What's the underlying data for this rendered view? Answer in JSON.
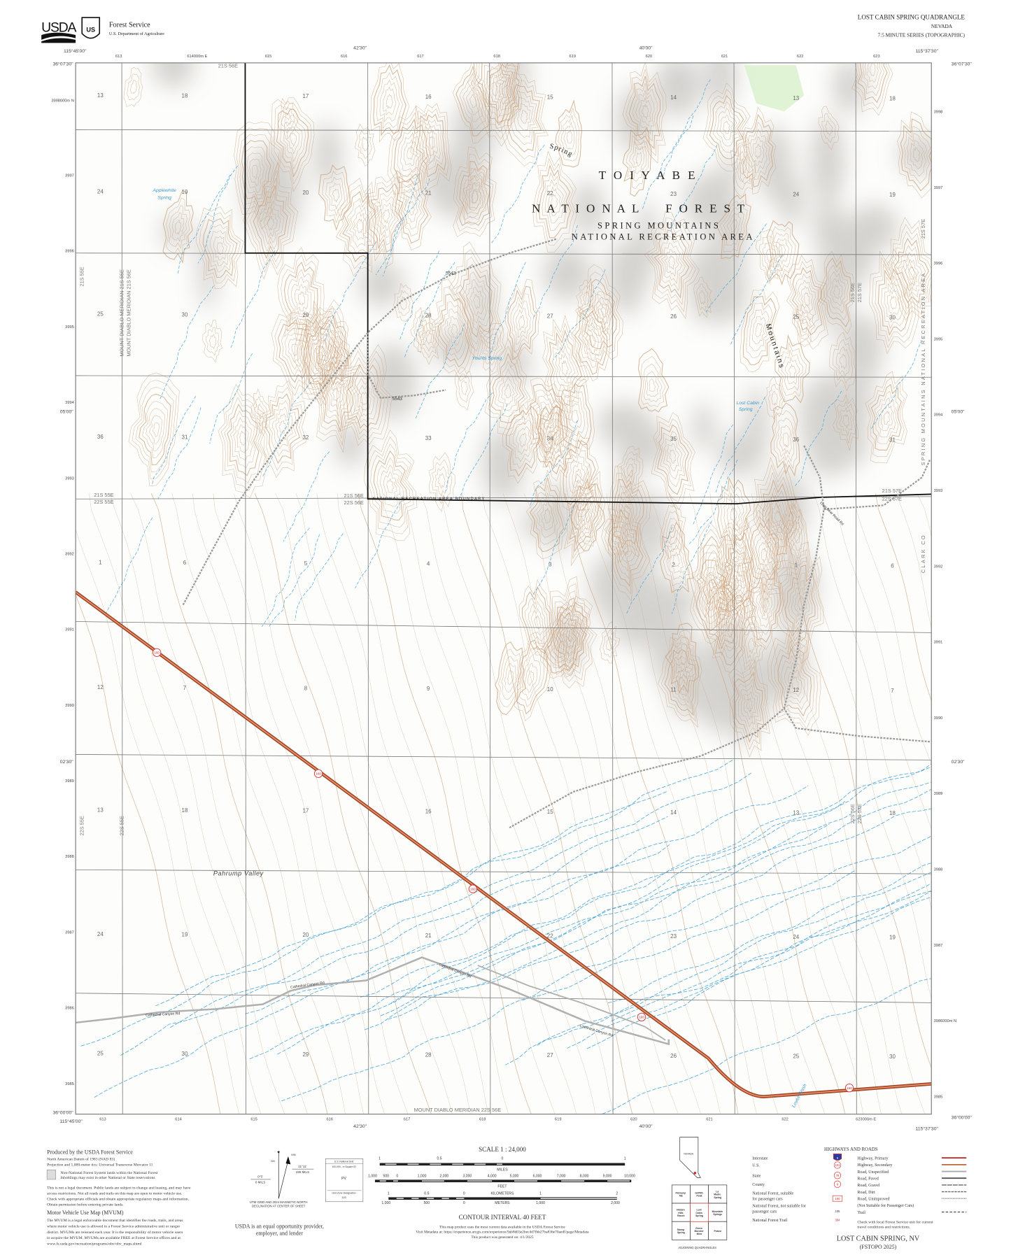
{
  "header": {
    "agency_logo_text": "USDA",
    "agency_name": "Forest Service",
    "department": "U.S. Department of Agriculture",
    "quad_title": "LOST CABIN SPRING QUADRANGLE",
    "state": "NEVADA",
    "series": "7.5 MINUTE SERIES (TOPOGRAPHIC)"
  },
  "frame": {
    "top_longitudes": [
      "115°45'00\"",
      "42'30\"",
      "40'00\"",
      "115°37'30\""
    ],
    "bottom_longitudes": [
      "115°45'00\"",
      "42'30\"",
      "40'00\"",
      "115°37'30\""
    ],
    "left_latitudes": [
      "36°07'30\"",
      "05'00\"",
      "02'30\"",
      "36°00'00\""
    ],
    "right_latitudes": [
      "36°07'30\"",
      "05'00\"",
      "02'30\"",
      "36°00'00\""
    ],
    "top_eastings": [
      "613",
      "614000m E",
      "615",
      "616",
      "617",
      "618",
      "619",
      "620",
      "621",
      "622",
      "623"
    ],
    "bottom_eastings": [
      "613",
      "614",
      "615",
      "616",
      "617",
      "618",
      "619",
      "620",
      "621",
      "622",
      "623000m E"
    ],
    "left_northings": [
      "3998000m N",
      "3997",
      "3996",
      "3995",
      "3994",
      "3993",
      "3992",
      "3991",
      "3990",
      "3989",
      "3988",
      "3987",
      "3986",
      "3985"
    ],
    "right_northings": [
      "3998",
      "3997",
      "3996",
      "3995",
      "3994",
      "3993",
      "3992",
      "3991",
      "3990",
      "3989",
      "3988",
      "3987",
      "3986000m N",
      "3985"
    ]
  },
  "map": {
    "section_numbers": [
      "13",
      "18",
      "17",
      "16",
      "15",
      "14",
      "13",
      "18",
      "24",
      "19",
      "20",
      "21",
      "22",
      "23",
      "24",
      "19",
      "25",
      "30",
      "29",
      "28",
      "27",
      "26",
      "25",
      "30",
      "36",
      "31",
      "32",
      "33",
      "34",
      "35",
      "36",
      "31",
      "1",
      "6",
      "5",
      "4",
      "3",
      "2",
      "1",
      "6",
      "12",
      "7",
      "8",
      "9",
      "10",
      "11",
      "12",
      "7",
      "13",
      "18",
      "17",
      "16",
      "15",
      "14",
      "13",
      "18",
      "24",
      "19",
      "20",
      "21",
      "22",
      "23",
      "24",
      "19",
      "25",
      "30",
      "29",
      "28",
      "27",
      "26",
      "25",
      "30"
    ],
    "forest_name_1": "T O I Y A B E",
    "forest_name_2": "N A T I O N A L     F O R E S T",
    "nra_line_1": "SPRING MOUNTAINS",
    "nra_line_2": "NATIONAL RECREATION AREA",
    "range_word_1": "Spring",
    "range_word_2": "Mountains",
    "valley": "Pahrump Valley",
    "nra_boundary": "NATIONAL RECREATION AREA BOUNDARY",
    "springs": [
      {
        "line1": "Applewhite",
        "line2": "Spring"
      },
      {
        "line1": "Younts Spring"
      },
      {
        "line1": "Lost Cabin",
        "line2": "Spring"
      }
    ],
    "wash": "Lovell Wash",
    "townships": {
      "t21s55e": "21S 55E",
      "t22s55e": "22S 55E",
      "t21s56e": "21S 56E",
      "t22s56e": "22S 56E",
      "t21s57e": "21S 57E",
      "t22s57e": "22S 57E",
      "meridian_21s55e": "MOUNT DIABLO MERIDIAN 21S 55E",
      "meridian_21s56e": "MOUNT DIABLO MERIDIAN 21S 56E",
      "meridian_22s56e": "MOUNT DIABLO MERIDIAN 22S 56E",
      "county": "CLARK CO",
      "nra_edge": "SPRING MOUNTAINS NATIONAL RECREATION AREA"
    },
    "roads": {
      "fs_5542": "5542",
      "fs_5543": "5543",
      "cathedral_1": "Cathedral Canyon Rd",
      "cathedral_2": "Cathedral Canyon Rd",
      "cathedral_3": "Cathedral Canyon Rd",
      "cathedral_4": "Cathedral Canyon Rd",
      "long_road": "Long Dear Road Rd",
      "highway_route": "160"
    },
    "colors": {
      "contour": "#c9a27c",
      "water": "#4aa6d8",
      "highway": "#b8532a",
      "road": "#a9a9a9",
      "boundary": "#111111",
      "vegetation": "#9fd68c"
    }
  },
  "footer": {
    "produced_by": "Produced by the USDA Forest Service",
    "datum": "North American Datum of 1983 (NAD 83)",
    "projection": "Projection and 1,000-meter tics: Universal Transverse Mercator 11",
    "inholding_1": "Non-National Forest System lands within the National Forest",
    "inholding_2": "Inholdings may exist in other National or State reservations",
    "disclaimer": [
      "This is not a legal document. Public lands are subject to change and leasing, and may have",
      "access restrictions.  Not all roads and trails on this map are open to motor vehicle use.",
      "Check with appropriate officials and obtain appropriate regulatory maps and information.",
      "Obtain permission before entering private lands."
    ],
    "mvum_title": "Motor Vehicle Use Map (MVUM)",
    "mvum_text": [
      "The MVUM is a legal enforceable document that identifies the roads, trails, and areas",
      "where motor vehicle use is allowed in a Forest Service administrative unit or ranger",
      "district. MVUMs are reissued each year. It is the responsibility of motor vehicle users",
      "to acquire the MVUM. MVUMs are available FREE at Forest Service offices and at",
      "www.fs.usda.gov/recreation/programs/ohv/ohv_maps.shtml"
    ],
    "declination": {
      "mn": "MN",
      "gn": "GN",
      "grid_angle": "0°5'",
      "grid_mils": "0 MILS",
      "mag_angle": "11°11'",
      "mag_mils": "199 MILS",
      "caption_1": "UTM GRID AND 2024 MAGNETIC NORTH",
      "caption_2": "DECLINATION AT CENTER OF SHEET"
    },
    "usng": {
      "title": "U.S. National Grid",
      "square_label": "100,000 - m Square ID",
      "square_id": "PV",
      "zone_label": "Grid Zone Designation",
      "zone": "11S"
    },
    "equal_opportunity_1": "USDA is an equal opportunity provider,",
    "equal_opportunity_2": "employer, and lender",
    "scale_title": "SCALE 1 : 24,000",
    "miles_labels": [
      "1",
      "0.5",
      "0",
      "1"
    ],
    "miles_unit": "MILES",
    "feet_labels": [
      "1,000",
      "500",
      "0",
      "1,000",
      "2,000",
      "3,000",
      "4,000",
      "5,000",
      "6,000",
      "7,000",
      "8,000",
      "9,000",
      "10,000"
    ],
    "feet_unit": "FEET",
    "km_labels": [
      "1",
      "0.5",
      "0",
      "1",
      "2"
    ],
    "km_unit": "KILOMETERS",
    "m_labels": [
      "1,000",
      "500",
      "0",
      "1,000",
      "2,000"
    ],
    "m_unit": "METERS",
    "contour_interval": "CONTOUR INTERVAL 40 FEET",
    "metadata": [
      "This map product uses the most current data available in the USDA Forest Service",
      "Visit Metadata at: https://experience.arcgis.com/experience/9ab8d03e2bec4d7fbb27ba836e70aedf/page/Metadata",
      "This product was generated on: 4/1/2025"
    ],
    "locator_state": "NEVADA",
    "adjoining": [
      "Pahrump NE",
      "Griffith Peak",
      "La Madre Spring",
      "Hidden Hills Ranch",
      "Lost Cabin Spring",
      "Mountain Springs",
      "Stump Spring",
      "Green Monster Mine",
      "Potosi"
    ],
    "adjoining_title": "ADJOINING QUADRANGLES",
    "legend_title": "HIGHWAYS AND ROADS",
    "legend_left": [
      {
        "label": "Interstate",
        "symbol": "5"
      },
      {
        "label": "U.S.",
        "symbol": "101"
      },
      {
        "label": "State",
        "symbol": "78"
      },
      {
        "label": "County",
        "symbol": "6"
      },
      {
        "label": "National Forest, suitable",
        "label2": "for passenger cars",
        "symbol": "100"
      },
      {
        "label": "National Forest, not suitable for",
        "label2": "passenger cars",
        "symbol": "105"
      },
      {
        "label": "National Forest Trail",
        "symbol": "384"
      }
    ],
    "legend_right": [
      {
        "label": "Highway, Primary",
        "color": "#a8322a",
        "style": "solid"
      },
      {
        "label": "Highway, Secondary",
        "color": "#b86a3a",
        "style": "solid"
      },
      {
        "label": "Road, Unspecified",
        "color": "#aaaaaa",
        "style": "solid"
      },
      {
        "label": "Road, Paved",
        "color": "#555555",
        "style": "solid"
      },
      {
        "label": "Road, Gravel",
        "color": "#666666",
        "style": "gravel"
      },
      {
        "label": "Road, Dirt",
        "color": "#666666",
        "style": "dirt"
      },
      {
        "label": "Road, Unimproved",
        "color": "#777777",
        "style": "dotted"
      },
      {
        "label": "(Not Suitable for Passenger Cars)",
        "color": "",
        "style": "none"
      },
      {
        "label": "Trail",
        "color": "#555555",
        "style": "dashed"
      }
    ],
    "legend_note_1": "Check with local Forest Service unit for current",
    "legend_note_2": "travel conditions and restrictions.",
    "sheet_name": "LOST CABIN SPRING, NV",
    "edition": "(FSTOPO 2025)"
  }
}
